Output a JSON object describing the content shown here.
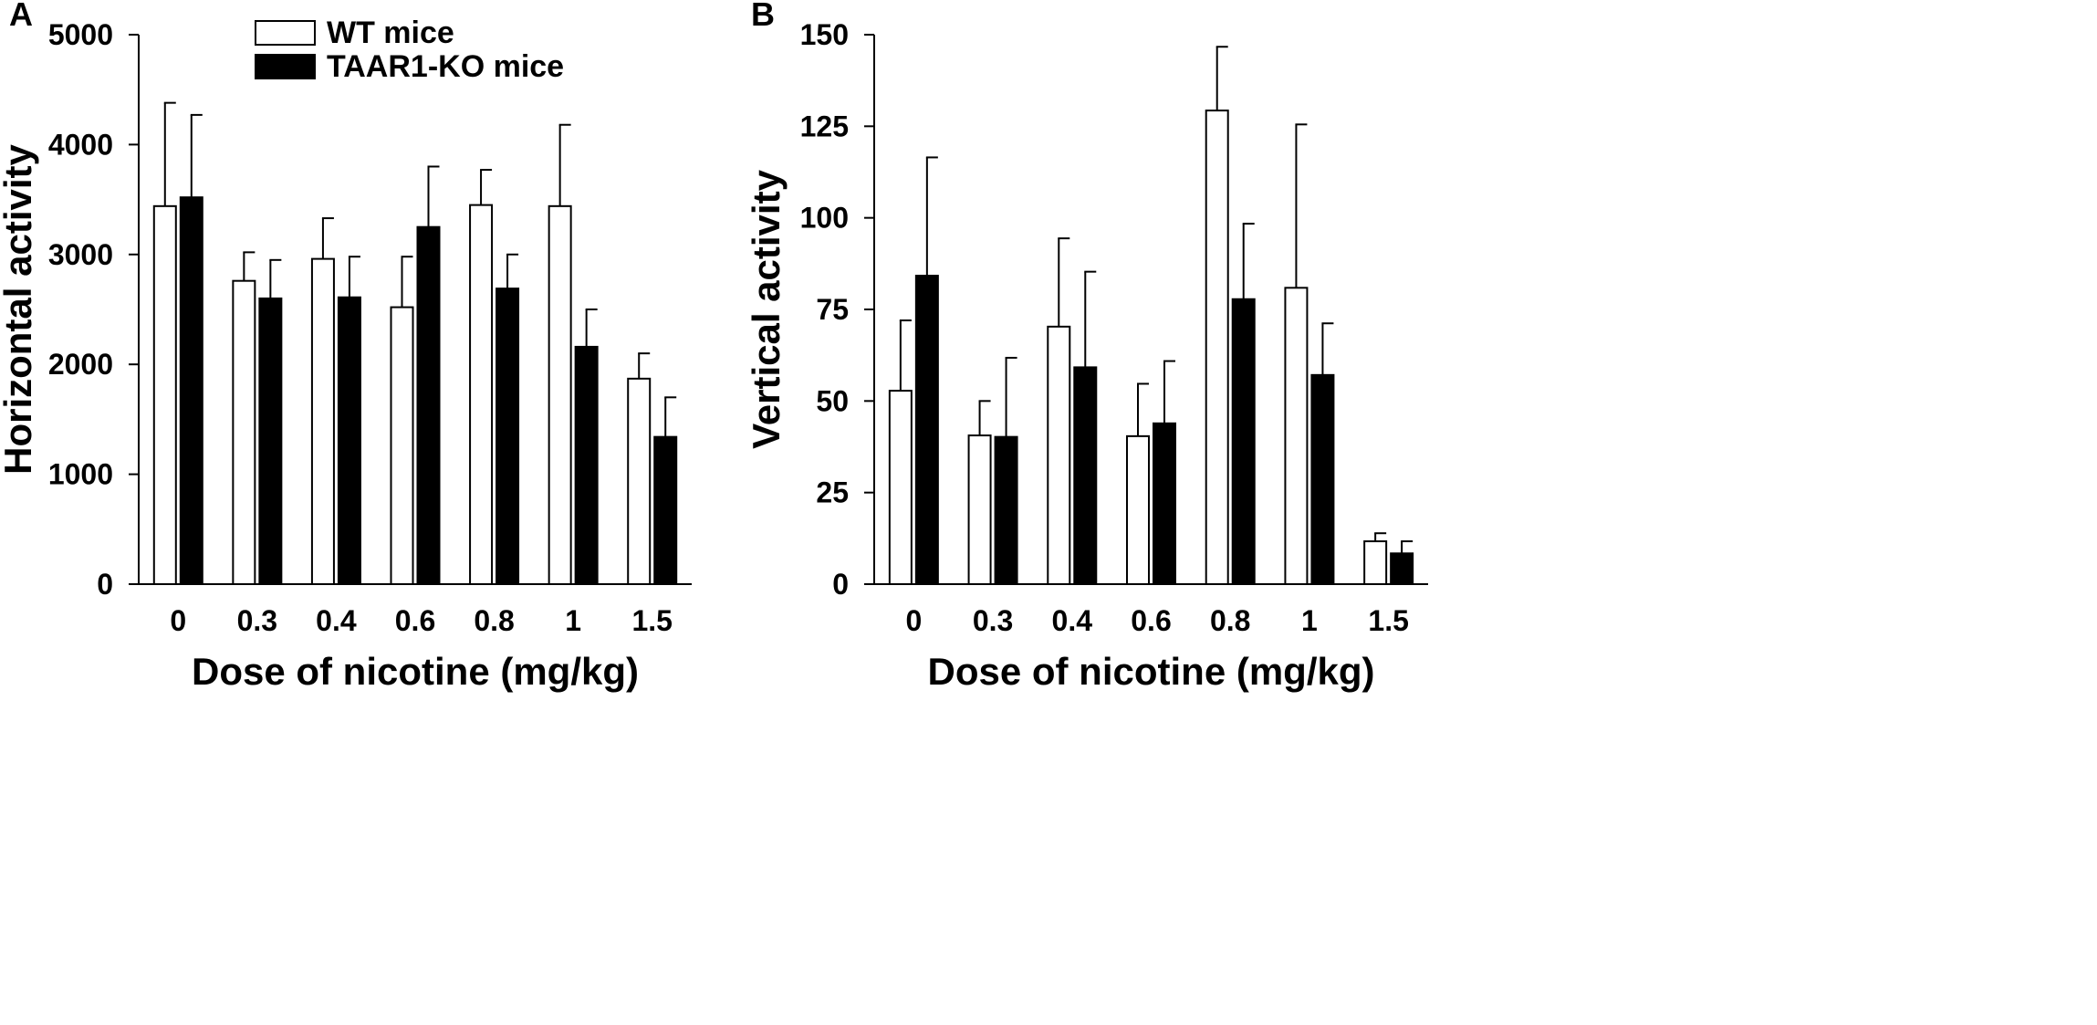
{
  "chart_data": [
    {
      "panel": "A",
      "type": "bar",
      "categories": [
        "0",
        "0.3",
        "0.4",
        "0.6",
        "0.8",
        "1",
        "1.5"
      ],
      "xlabel": "Dose of nicotine (mg/kg)",
      "ylabel": "Horizontal activity",
      "ylim": [
        0,
        5000
      ],
      "yticks": [
        0,
        1000,
        2000,
        3000,
        4000,
        5000
      ],
      "series": [
        {
          "name": "WT mice",
          "fill": "#ffffff",
          "values": [
            3440,
            2760,
            2960,
            2520,
            3450,
            3440,
            1870
          ],
          "errors": [
            940,
            260,
            370,
            460,
            320,
            740,
            230
          ]
        },
        {
          "name": "TAAR1-KO mice",
          "fill": "#000000",
          "values": [
            3520,
            2600,
            2610,
            3250,
            2690,
            2160,
            1340
          ],
          "errors": [
            750,
            350,
            370,
            550,
            310,
            340,
            360
          ]
        }
      ]
    },
    {
      "panel": "B",
      "type": "bar",
      "categories": [
        "0",
        "0.3",
        "0.4",
        "0.6",
        "0.8",
        "1",
        "1.5"
      ],
      "xlabel": "Dose of nicotine (mg/kg)",
      "ylabel": "Vertical activity",
      "ylim": [
        0,
        150
      ],
      "yticks": [
        0,
        25,
        50,
        75,
        100,
        125,
        150
      ],
      "series": [
        {
          "name": "WT mice",
          "fill": "#ffffff",
          "values": [
            52.8,
            40.6,
            70.3,
            40.4,
            129.3,
            80.9,
            11.7
          ],
          "errors": [
            19.2,
            9.4,
            24.1,
            14.3,
            17.4,
            44.6,
            2.2
          ]
        },
        {
          "name": "TAAR1-KO mice",
          "fill": "#000000",
          "values": [
            84.2,
            40.2,
            59.2,
            43.9,
            77.8,
            57.1,
            8.4
          ],
          "errors": [
            32.3,
            21.6,
            26.1,
            17.0,
            20.6,
            14.1,
            3.3
          ]
        }
      ]
    }
  ],
  "legend": {
    "items": [
      {
        "label": "WT mice",
        "fill": "#ffffff"
      },
      {
        "label": "TAAR1-KO mice",
        "fill": "#000000"
      }
    ]
  }
}
